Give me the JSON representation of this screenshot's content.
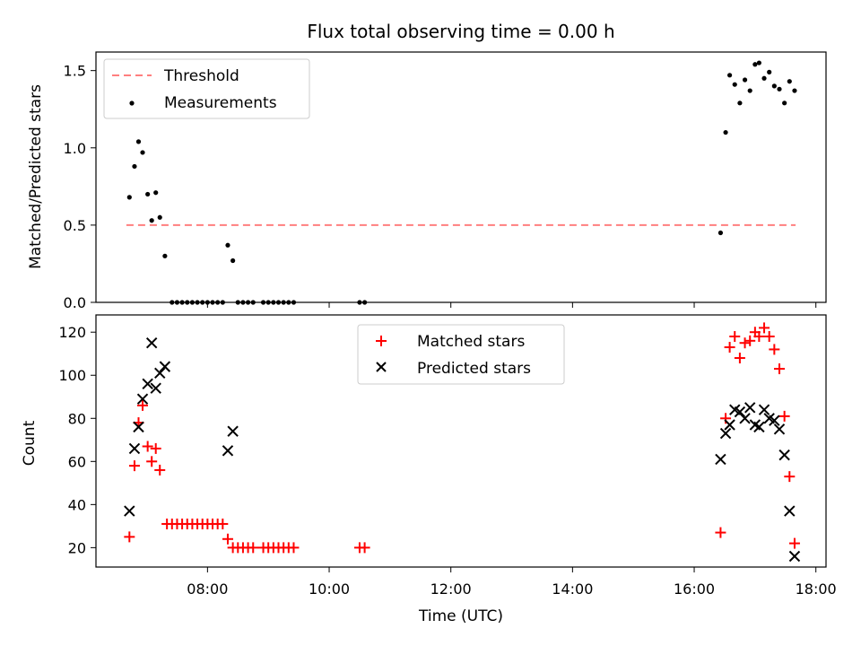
{
  "colors": {
    "threshold": "#ff7f7f",
    "measurement": "#000000",
    "matched": "#ff0000",
    "predicted": "#000000"
  },
  "chart_data": [
    {
      "type": "scatter",
      "title": "Flux total observing time = 0.00 h",
      "xlabel": "",
      "ylabel": "Matched/Predicted stars",
      "ylim": [
        0,
        1.62
      ],
      "yticks": [
        "0.0",
        "0.5",
        "1.0",
        "1.5"
      ],
      "legend": [
        "Threshold",
        "Measurements"
      ],
      "legend_position": "top-left",
      "threshold": {
        "name": "Threshold",
        "value": 0.5,
        "x_range": [
          "06:40",
          "17:40"
        ]
      },
      "series": [
        {
          "name": "Measurements",
          "marker": "dot",
          "points": [
            [
              "06:43",
              0.68
            ],
            [
              "06:48",
              0.88
            ],
            [
              "06:52",
              1.04
            ],
            [
              "06:56",
              0.97
            ],
            [
              "07:01",
              0.7
            ],
            [
              "07:05",
              0.53
            ],
            [
              "07:09",
              0.71
            ],
            [
              "07:13",
              0.55
            ],
            [
              "07:18",
              0.3
            ],
            [
              "07:25",
              0.0
            ],
            [
              "07:30",
              0.0
            ],
            [
              "07:35",
              0.0
            ],
            [
              "07:40",
              0.0
            ],
            [
              "07:45",
              0.0
            ],
            [
              "07:50",
              0.0
            ],
            [
              "07:55",
              0.0
            ],
            [
              "08:00",
              0.0
            ],
            [
              "08:05",
              0.0
            ],
            [
              "08:10",
              0.0
            ],
            [
              "08:15",
              0.0
            ],
            [
              "08:20",
              0.37
            ],
            [
              "08:25",
              0.27
            ],
            [
              "08:30",
              0.0
            ],
            [
              "08:35",
              0.0
            ],
            [
              "08:40",
              0.0
            ],
            [
              "08:45",
              0.0
            ],
            [
              "08:55",
              0.0
            ],
            [
              "09:00",
              0.0
            ],
            [
              "09:05",
              0.0
            ],
            [
              "09:10",
              0.0
            ],
            [
              "09:15",
              0.0
            ],
            [
              "09:20",
              0.0
            ],
            [
              "09:25",
              0.0
            ],
            [
              "10:30",
              0.0
            ],
            [
              "10:35",
              0.0
            ],
            [
              "16:26",
              0.45
            ],
            [
              "16:31",
              1.1
            ],
            [
              "16:35",
              1.47
            ],
            [
              "16:40",
              1.41
            ],
            [
              "16:45",
              1.29
            ],
            [
              "16:50",
              1.44
            ],
            [
              "16:55",
              1.37
            ],
            [
              "17:00",
              1.54
            ],
            [
              "17:04",
              1.55
            ],
            [
              "17:09",
              1.45
            ],
            [
              "17:14",
              1.49
            ],
            [
              "17:19",
              1.4
            ],
            [
              "17:24",
              1.38
            ],
            [
              "17:29",
              1.29
            ],
            [
              "17:34",
              1.43
            ],
            [
              "17:39",
              1.37
            ]
          ]
        }
      ]
    },
    {
      "type": "scatter",
      "title": "",
      "xlabel": "Time (UTC)",
      "ylabel": "Count",
      "xlim": [
        "06:10",
        "18:10"
      ],
      "xticks": [
        "08:00",
        "10:00",
        "12:00",
        "14:00",
        "16:00",
        "18:00"
      ],
      "ylim": [
        11,
        128
      ],
      "yticks": [
        "20",
        "40",
        "60",
        "80",
        "100",
        "120"
      ],
      "legend": [
        "Matched stars",
        "Predicted stars"
      ],
      "legend_position": "upper center",
      "series": [
        {
          "name": "Matched stars",
          "marker": "plus",
          "points": [
            [
              "06:43",
              25
            ],
            [
              "06:48",
              58
            ],
            [
              "06:52",
              78
            ],
            [
              "06:56",
              86
            ],
            [
              "07:01",
              67
            ],
            [
              "07:05",
              60
            ],
            [
              "07:09",
              66
            ],
            [
              "07:13",
              56
            ],
            [
              "07:20",
              31
            ],
            [
              "07:25",
              31
            ],
            [
              "07:30",
              31
            ],
            [
              "07:35",
              31
            ],
            [
              "07:40",
              31
            ],
            [
              "07:45",
              31
            ],
            [
              "07:50",
              31
            ],
            [
              "07:55",
              31
            ],
            [
              "08:00",
              31
            ],
            [
              "08:05",
              31
            ],
            [
              "08:10",
              31
            ],
            [
              "08:15",
              31
            ],
            [
              "08:20",
              24
            ],
            [
              "08:25",
              20
            ],
            [
              "08:30",
              20
            ],
            [
              "08:35",
              20
            ],
            [
              "08:40",
              20
            ],
            [
              "08:45",
              20
            ],
            [
              "08:55",
              20
            ],
            [
              "09:00",
              20
            ],
            [
              "09:05",
              20
            ],
            [
              "09:10",
              20
            ],
            [
              "09:15",
              20
            ],
            [
              "09:20",
              20
            ],
            [
              "09:25",
              20
            ],
            [
              "10:30",
              20
            ],
            [
              "10:35",
              20
            ],
            [
              "16:26",
              27
            ],
            [
              "16:31",
              80
            ],
            [
              "16:35",
              113
            ],
            [
              "16:40",
              118
            ],
            [
              "16:45",
              108
            ],
            [
              "16:50",
              115
            ],
            [
              "16:55",
              116
            ],
            [
              "17:00",
              120
            ],
            [
              "17:04",
              118
            ],
            [
              "17:09",
              122
            ],
            [
              "17:14",
              118
            ],
            [
              "17:19",
              112
            ],
            [
              "17:24",
              103
            ],
            [
              "17:29",
              81
            ],
            [
              "17:34",
              53
            ],
            [
              "17:39",
              22
            ]
          ]
        },
        {
          "name": "Predicted stars",
          "marker": "x",
          "points": [
            [
              "06:43",
              37
            ],
            [
              "06:48",
              66
            ],
            [
              "06:52",
              76
            ],
            [
              "06:56",
              89
            ],
            [
              "07:01",
              96
            ],
            [
              "07:05",
              115
            ],
            [
              "07:09",
              94
            ],
            [
              "07:13",
              101
            ],
            [
              "07:18",
              104
            ],
            [
              "08:20",
              65
            ],
            [
              "08:25",
              74
            ],
            [
              "16:26",
              61
            ],
            [
              "16:31",
              73
            ],
            [
              "16:35",
              77
            ],
            [
              "16:40",
              84
            ],
            [
              "16:45",
              83
            ],
            [
              "16:50",
              80
            ],
            [
              "16:55",
              85
            ],
            [
              "17:00",
              77
            ],
            [
              "17:04",
              76
            ],
            [
              "17:09",
              84
            ],
            [
              "17:14",
              80
            ],
            [
              "17:19",
              79
            ],
            [
              "17:24",
              75
            ],
            [
              "17:29",
              63
            ],
            [
              "17:34",
              37
            ],
            [
              "17:39",
              16
            ]
          ]
        }
      ]
    }
  ]
}
